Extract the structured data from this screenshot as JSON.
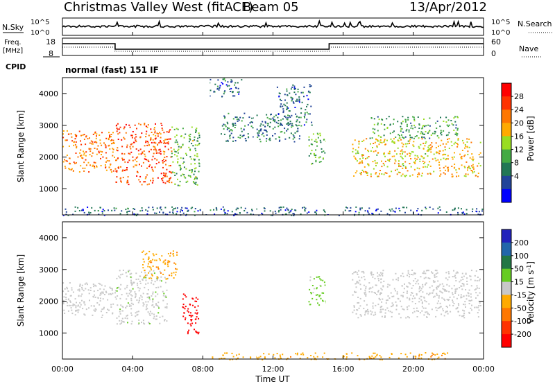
{
  "header": {
    "title": "Christmas Valley West (fitACF)",
    "beam": "Beam 05",
    "date": "13/Apr/2012"
  },
  "noise_panel": {
    "left_label": "N.Sky",
    "left_ticks": [
      "10^5",
      "10^0"
    ],
    "right_ticks": [
      "10^5",
      "10^0"
    ],
    "right_label": "N.Search"
  },
  "freq_panel": {
    "left_label_1": "Freq.",
    "left_label_2": "[MHz]",
    "left_ticks": [
      "18",
      "8"
    ],
    "right_ticks": [
      "60",
      "0"
    ],
    "right_label": "Nave"
  },
  "cpid": {
    "label": "CPID",
    "mode": "normal (fast) 151 IF"
  },
  "x_axis": {
    "label": "Time UT",
    "ticks": [
      "00:00",
      "04:00",
      "08:00",
      "12:00",
      "16:00",
      "20:00",
      "00:00"
    ]
  },
  "y_axis": {
    "label": "Slant Range [km]",
    "ticks": [
      "1000",
      "2000",
      "3000",
      "4000"
    ]
  },
  "power_scale": {
    "label": "Power [dB]",
    "ticks": [
      "28",
      "24",
      "20",
      "16",
      "12",
      "8",
      "4"
    ],
    "colors": [
      "#ff0000",
      "#ff3300",
      "#ff7700",
      "#ffaa00",
      "#99dd22",
      "#44aa44",
      "#227755",
      "#224499",
      "#0000ff"
    ]
  },
  "velocity_scale": {
    "label": "Velocity [m s",
    "label_sup": "-1",
    "label_end": "]",
    "ticks": [
      "200",
      "100",
      "50",
      "15",
      "-15",
      "-50",
      "-100",
      "-200"
    ],
    "colors": [
      "#2222bb",
      "#2266aa",
      "#227744",
      "#66cc22",
      "#c8c8c8",
      "#ffaa00",
      "#ff7700",
      "#ff3300",
      "#ff0000"
    ]
  },
  "chart_data": {
    "type": "heatmap",
    "x_range_hours": [
      0,
      24
    ],
    "y_range_km": [
      180,
      4500
    ],
    "power_db_range": [
      0,
      30
    ],
    "velocity_range": [
      -200,
      200
    ],
    "power_regions": [
      {
        "t0": 0.0,
        "t1": 3.0,
        "r0": 1550,
        "r1": 2850,
        "level": 22
      },
      {
        "t0": 3.0,
        "t1": 6.2,
        "r0": 1150,
        "r1": 3100,
        "level": 25
      },
      {
        "t0": 6.2,
        "t1": 7.8,
        "r0": 1100,
        "r1": 3000,
        "level": 12
      },
      {
        "t0": 8.0,
        "t1": 10.2,
        "r0": 3900,
        "r1": 4500,
        "level": 6
      },
      {
        "t0": 9.0,
        "t1": 13.5,
        "r0": 2500,
        "r1": 3400,
        "level": 7
      },
      {
        "t0": 12.2,
        "t1": 14.2,
        "r0": 3000,
        "r1": 4300,
        "level": 6
      },
      {
        "t0": 14.0,
        "t1": 15.0,
        "r0": 1800,
        "r1": 2800,
        "level": 12
      },
      {
        "t0": 16.5,
        "t1": 23.8,
        "r0": 1400,
        "r1": 2600,
        "level": 18
      },
      {
        "t0": 17.5,
        "t1": 22.5,
        "r0": 2600,
        "r1": 3300,
        "level": 10
      },
      {
        "t0": 0.0,
        "t1": 24.0,
        "r0": 180,
        "r1": 450,
        "level": 5
      }
    ],
    "velocity_regions": [
      {
        "t0": 0.0,
        "t1": 3.0,
        "r0": 1500,
        "r1": 2600,
        "v": 0
      },
      {
        "t0": 3.0,
        "t1": 6.0,
        "r0": 1300,
        "r1": 3000,
        "v": 10
      },
      {
        "t0": 4.5,
        "t1": 6.5,
        "r0": 2700,
        "r1": 3600,
        "v": -60
      },
      {
        "t0": 6.8,
        "t1": 7.8,
        "r0": 1000,
        "r1": 2300,
        "v": -200
      },
      {
        "t0": 14.0,
        "t1": 15.0,
        "r0": 1900,
        "r1": 2800,
        "v": 40
      },
      {
        "t0": 16.5,
        "t1": 23.8,
        "r0": 1500,
        "r1": 3000,
        "v": 0
      },
      {
        "t0": 8.5,
        "t1": 22.0,
        "r0": 180,
        "r1": 400,
        "v": -60
      }
    ]
  }
}
